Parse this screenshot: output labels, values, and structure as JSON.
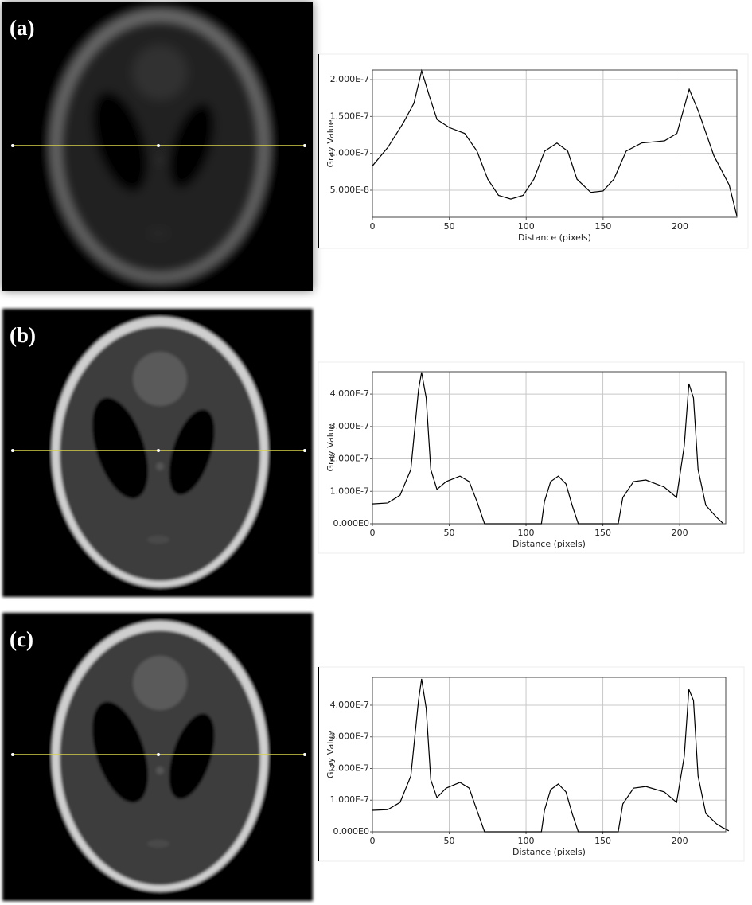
{
  "chart_data": [
    {
      "type": "line",
      "panel_label": "(a)",
      "y_label": "Gray Value",
      "x_label": "Distance (pixels)",
      "color": "#000000",
      "grid": true,
      "xlim": [
        0,
        237
      ],
      "xticks": [
        0,
        50,
        100,
        150,
        200
      ],
      "ylim": [
        1.33e-08,
        2.13e-07
      ],
      "yticks": [
        {
          "value": 5e-08,
          "label": "5.000E-8"
        },
        {
          "value": 1e-07,
          "label": "1.000E-7"
        },
        {
          "value": 1.5e-07,
          "label": "1.500E-7"
        },
        {
          "value": 2e-07,
          "label": "2.000E-7"
        }
      ],
      "x": [
        0,
        10,
        20,
        27,
        32,
        37,
        42,
        50,
        60,
        68,
        75,
        82,
        90,
        98,
        105,
        112,
        120,
        127,
        133,
        142,
        150,
        157,
        165,
        175,
        190,
        198,
        206,
        212,
        222,
        232,
        237
      ],
      "values": [
        8.3e-08,
        1.08e-07,
        1.41e-07,
        1.68e-07,
        2.12e-07,
        1.78e-07,
        1.46e-07,
        1.35e-07,
        1.27e-07,
        1.03e-07,
        6.5e-08,
        4.3e-08,
        3.8e-08,
        4.3e-08,
        6.5e-08,
        1.03e-07,
        1.14e-07,
        1.03e-07,
        6.5e-08,
        4.7e-08,
        4.9e-08,
        6.5e-08,
        1.03e-07,
        1.14e-07,
        1.17e-07,
        1.27e-07,
        1.87e-07,
        1.57e-07,
        9.7e-08,
        5.7e-08,
        1.5e-08
      ]
    },
    {
      "type": "line",
      "panel_label": "(b)",
      "y_label": "Gray Value",
      "x_label": "Distance (pixels)",
      "color": "#000000",
      "grid": true,
      "xlim": [
        0,
        230
      ],
      "xticks": [
        0,
        50,
        100,
        150,
        200
      ],
      "ylim": [
        0,
        4.69e-07
      ],
      "yticks": [
        {
          "value": 0,
          "label": "0.000E0"
        },
        {
          "value": 1e-07,
          "label": "1.000E-7"
        },
        {
          "value": 2e-07,
          "label": "2.000E-7"
        },
        {
          "value": 3e-07,
          "label": "3.000E-7"
        },
        {
          "value": 4e-07,
          "label": "4.000E-7"
        }
      ],
      "x": [
        0,
        10,
        18,
        25,
        30,
        32,
        35,
        38,
        42,
        48,
        57,
        63,
        68,
        73,
        110,
        112,
        116,
        121,
        126,
        130,
        134,
        160,
        163,
        170,
        178,
        190,
        198,
        203,
        206,
        209,
        212,
        217,
        224,
        228
      ],
      "values": [
        6.1e-08,
        6.4e-08,
        8.8e-08,
        1.67e-07,
        4.13e-07,
        4.67e-07,
        3.88e-07,
        1.67e-07,
        1.06e-07,
        1.3e-07,
        1.47e-07,
        1.3e-07,
        6.9e-08,
        0,
        0,
        6.9e-08,
        1.3e-07,
        1.47e-07,
        1.23e-07,
        5.7e-08,
        0,
        0,
        8.1e-08,
        1.3e-07,
        1.35e-07,
        1.13e-07,
        8.1e-08,
        2.41e-07,
        4.32e-07,
        3.88e-07,
        1.67e-07,
        5.7e-08,
        2e-08,
        2e-09
      ]
    },
    {
      "type": "line",
      "panel_label": "(c)",
      "y_label": "Gray Value",
      "x_label": "Distance (pixels)",
      "color": "#000000",
      "grid": true,
      "xlim": [
        0,
        230
      ],
      "xticks": [
        0,
        50,
        100,
        150,
        200
      ],
      "ylim": [
        0,
        4.88e-07
      ],
      "yticks": [
        {
          "value": 0,
          "label": "0.000E0"
        },
        {
          "value": 1e-07,
          "label": "1.000E-7"
        },
        {
          "value": 2e-07,
          "label": "2.000E-7"
        },
        {
          "value": 3e-07,
          "label": "3.000E-7"
        },
        {
          "value": 4e-07,
          "label": "4.000E-7"
        }
      ],
      "x": [
        0,
        10,
        18,
        25,
        30,
        32,
        35,
        38,
        42,
        48,
        57,
        63,
        68,
        73,
        110,
        112,
        116,
        121,
        126,
        130,
        134,
        160,
        163,
        170,
        178,
        190,
        198,
        203,
        206,
        209,
        212,
        217,
        224,
        228,
        232
      ],
      "values": [
        6.8e-08,
        7e-08,
        9.3e-08,
        1.76e-07,
        4.15e-07,
        4.83e-07,
        3.9e-07,
        1.64e-07,
        1.08e-07,
        1.38e-07,
        1.56e-07,
        1.38e-07,
        6.8e-08,
        0,
        0,
        6.8e-08,
        1.33e-07,
        1.51e-07,
        1.26e-07,
        5.8e-08,
        0,
        0,
        8.8e-08,
        1.38e-07,
        1.43e-07,
        1.26e-07,
        9.3e-08,
        2.39e-07,
        4.5e-07,
        4.15e-07,
        1.76e-07,
        5.8e-08,
        2.5e-08,
        1.3e-08,
        3e-09
      ]
    }
  ]
}
